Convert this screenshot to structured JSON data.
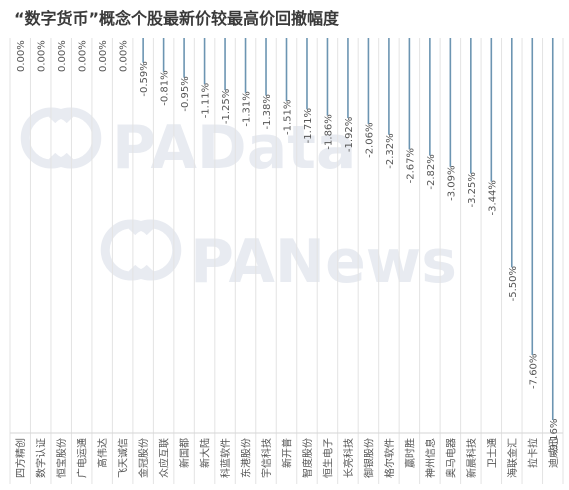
{
  "title": "“数字货币”概念个股最新价较最高价回撤幅度",
  "watermarks": [
    "PAData",
    "PANews"
  ],
  "colors": {
    "bar": "#6c95b2",
    "grid": "#e3e3e3",
    "text": "#555555",
    "watermark": "#e8ebf1"
  },
  "chart_data": {
    "type": "bar",
    "title": "“数字货币”概念个股最新价较最高价回撤幅度",
    "xlabel": "",
    "ylabel": "",
    "ylim": [
      -9.16,
      0
    ],
    "grid": "vertical",
    "categories": [
      "四方精创",
      "数字认证",
      "恒宝股份",
      "广电运通",
      "高伟达",
      "飞天诚信",
      "金冠股份",
      "众应互联",
      "新国都",
      "新大陆",
      "科蓝软件",
      "东港股份",
      "宇信科技",
      "新开普",
      "智度股份",
      "恒生电子",
      "长亮科技",
      "御银股份",
      "格尔软件",
      "赢时胜",
      "神州信息",
      "奥马电器",
      "新晨科技",
      "卫士通",
      "海联金汇",
      "拉卡拉",
      "迪威迅"
    ],
    "values": [
      0.0,
      0.0,
      0.0,
      0.0,
      0.0,
      0.0,
      -0.59,
      -0.81,
      -0.95,
      -1.11,
      -1.25,
      -1.31,
      -1.38,
      -1.51,
      -1.71,
      -1.86,
      -1.92,
      -2.06,
      -2.32,
      -2.67,
      -2.82,
      -3.09,
      -3.25,
      -3.44,
      -5.5,
      -7.6,
      -9.16
    ],
    "labels": [
      "0.00%",
      "0.00%",
      "0.00%",
      "0.00%",
      "0.00%",
      "0.00%",
      "-0.59%",
      "-0.81%",
      "-0.95%",
      "-1.11%",
      "-1.25%",
      "-1.31%",
      "-1.38%",
      "-1.51%",
      "-1.71%",
      "-1.86%",
      "-1.92%",
      "-2.06%",
      "-2.32%",
      "-2.67%",
      "-2.82%",
      "-3.09%",
      "-3.25%",
      "-3.44%",
      "-5.50%",
      "-7.60%",
      "-9.16%"
    ]
  }
}
